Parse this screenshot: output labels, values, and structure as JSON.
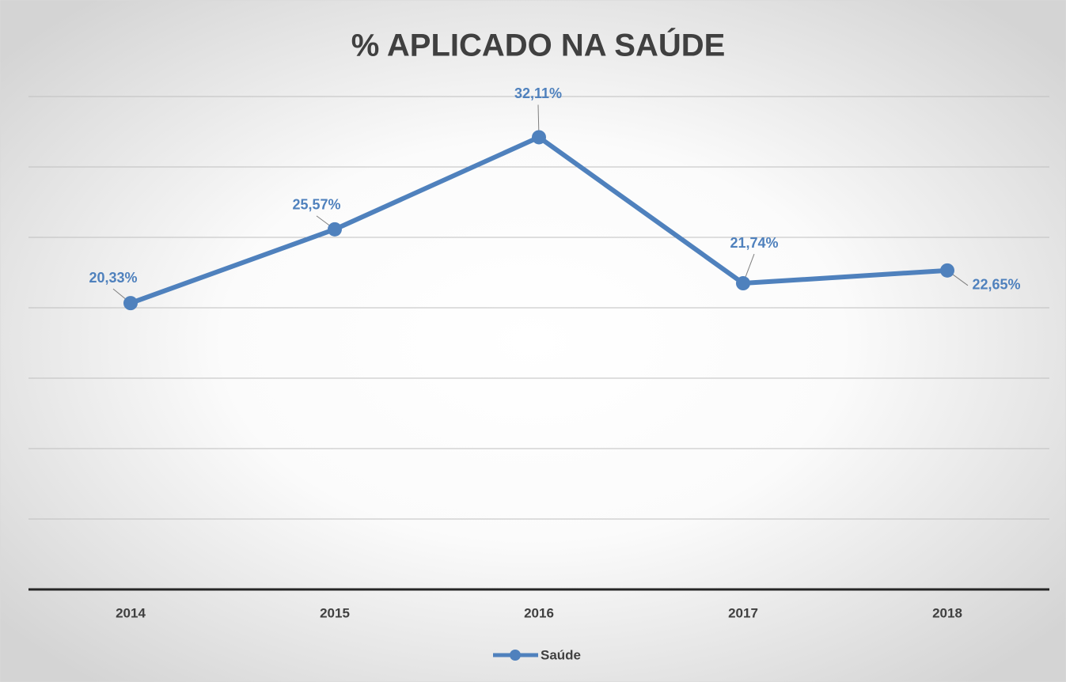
{
  "chart_data": {
    "type": "line",
    "title": "% APLICADO NA SAÚDE",
    "categories": [
      "2014",
      "2015",
      "2016",
      "2017",
      "2018"
    ],
    "series": [
      {
        "name": "Saúde",
        "color": "#4f81bd",
        "values": [
          20.33,
          25.57,
          32.11,
          21.74,
          22.65
        ],
        "value_labels": [
          "20,33%",
          "25,57%",
          "32,11%",
          "21,74%",
          "22,65%"
        ]
      }
    ],
    "ylim": [
      0,
      35
    ],
    "yticks": [
      0,
      5,
      10,
      15,
      20,
      25,
      30,
      35
    ],
    "grid": true,
    "legend": "bottom"
  }
}
